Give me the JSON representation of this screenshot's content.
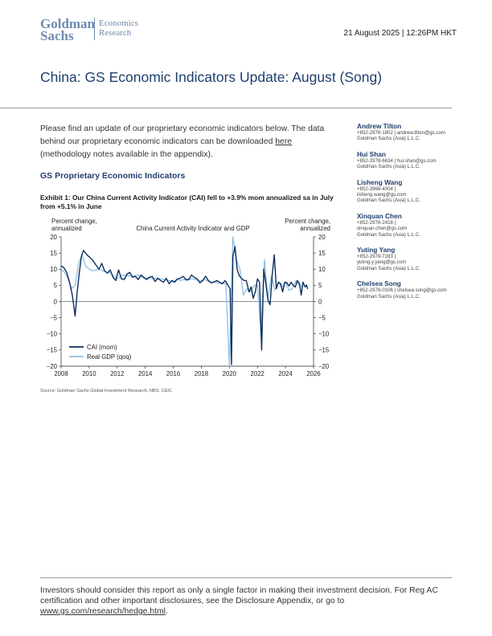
{
  "header": {
    "logo_line1": "Goldman",
    "logo_line2": "Sachs",
    "brand_line1": "Economics",
    "brand_line2": "Research",
    "date": "21 August 2025 | 12:26PM HKT"
  },
  "title": "China: GS Economic Indicators Update: August (Song)",
  "intro": {
    "text_before": "Please find an update of our proprietary economic indicators below. The data behind our proprietary economic indicators can be downloaded ",
    "link_text": "here",
    "text_after": " (methodology notes available in the appendix)."
  },
  "section_heading": "GS Proprietary Economic Indicators",
  "exhibit_title": "Exhibit 1: Our China Current Activity Indicator (CAI) fell to +3.9% mom annualized sa in July from +5.1% in June",
  "source": "Source: Goldman Sachs Global Investment Research, NBS, CEIC",
  "authors": [
    {
      "name": "Andrew Tilton",
      "contact": "+852-2978-1802 | andrew.tilton@gs.com",
      "company": "Goldman Sachs (Asia) L.L.C."
    },
    {
      "name": "Hui Shan",
      "contact": "+852-2978-6634 | hui.shan@gs.com",
      "company": "Goldman Sachs (Asia) L.L.C."
    },
    {
      "name": "Lisheng Wang",
      "contact": "+852-3966-4004 |",
      "contact2": "lisheng.wang@gs.com",
      "company": "Goldman Sachs (Asia) L.L.C."
    },
    {
      "name": "Xinquan Chen",
      "contact": "+852-2978-2418 |",
      "contact2": "xinquan.chen@gs.com",
      "company": "Goldman Sachs (Asia) L.L.C."
    },
    {
      "name": "Yuting Yang",
      "contact": "+852-2978-7283 |",
      "contact2": "yuting.y.yang@gs.com",
      "company": "Goldman Sachs (Asia) L.L.C."
    },
    {
      "name": "Chelsea Song",
      "contact": "+852-2978-0106 | chelsea.song@gs.com",
      "company": "Goldman Sachs (Asia) L.L.C."
    }
  ],
  "footer": {
    "text": "Investors should consider this report as only a single factor in making their investment decision. For Reg AC certification and other important disclosures, see the Disclosure Appendix, or go to ",
    "link_text": "www.gs.com/research/hedge.html",
    "text_after": "."
  },
  "chart_data": {
    "type": "line",
    "title": "China Current Activity Indicator and GDP",
    "ylabel_left": "Percent change, annualized",
    "ylabel_right": "Percent change, annualized",
    "xlim": [
      2008,
      2026
    ],
    "ylim": [
      -20,
      20
    ],
    "x_ticks": [
      "2008",
      "2010",
      "2012",
      "2014",
      "2016",
      "2018",
      "2020",
      "2022",
      "2024",
      "2026"
    ],
    "y_ticks_left": [
      "20",
      "15",
      "10",
      "5",
      "0",
      "−5",
      "−10",
      "−15",
      "−20"
    ],
    "y_ticks_right": [
      "20",
      "15",
      "10",
      "5",
      "0",
      "−5",
      "−10",
      "−15",
      "−20"
    ],
    "legend_position": "bottom-left",
    "grid": false,
    "series": [
      {
        "name": "CAI (mom)",
        "color": "#0d2f5c",
        "points": [
          [
            2008.0,
            11.0
          ],
          [
            2008.2,
            10.5
          ],
          [
            2008.4,
            9.0
          ],
          [
            2008.6,
            6.0
          ],
          [
            2008.8,
            2.0
          ],
          [
            2009.0,
            -4.5
          ],
          [
            2009.15,
            3.0
          ],
          [
            2009.3,
            9.0
          ],
          [
            2009.45,
            14.0
          ],
          [
            2009.6,
            15.8
          ],
          [
            2009.75,
            15.0
          ],
          [
            2009.9,
            14.2
          ],
          [
            2010.1,
            13.5
          ],
          [
            2010.3,
            12.5
          ],
          [
            2010.5,
            11.2
          ],
          [
            2010.7,
            10.0
          ],
          [
            2010.9,
            11.8
          ],
          [
            2011.1,
            9.5
          ],
          [
            2011.3,
            8.8
          ],
          [
            2011.5,
            9.8
          ],
          [
            2011.7,
            7.5
          ],
          [
            2011.9,
            6.5
          ],
          [
            2012.1,
            9.8
          ],
          [
            2012.3,
            7.0
          ],
          [
            2012.5,
            6.8
          ],
          [
            2012.7,
            8.5
          ],
          [
            2012.9,
            9.0
          ],
          [
            2013.1,
            7.5
          ],
          [
            2013.3,
            7.8
          ],
          [
            2013.5,
            6.8
          ],
          [
            2013.7,
            8.2
          ],
          [
            2013.9,
            7.5
          ],
          [
            2014.1,
            6.8
          ],
          [
            2014.3,
            7.5
          ],
          [
            2014.5,
            7.8
          ],
          [
            2014.7,
            6.2
          ],
          [
            2014.9,
            7.2
          ],
          [
            2015.1,
            6.5
          ],
          [
            2015.3,
            6.0
          ],
          [
            2015.5,
            7.2
          ],
          [
            2015.7,
            5.5
          ],
          [
            2015.9,
            6.5
          ],
          [
            2016.1,
            6.0
          ],
          [
            2016.3,
            7.0
          ],
          [
            2016.5,
            7.2
          ],
          [
            2016.7,
            7.8
          ],
          [
            2016.9,
            6.8
          ],
          [
            2017.1,
            6.8
          ],
          [
            2017.3,
            8.2
          ],
          [
            2017.5,
            7.5
          ],
          [
            2017.7,
            7.0
          ],
          [
            2017.9,
            5.8
          ],
          [
            2018.1,
            6.5
          ],
          [
            2018.3,
            7.8
          ],
          [
            2018.5,
            6.5
          ],
          [
            2018.7,
            5.8
          ],
          [
            2018.9,
            6.0
          ],
          [
            2019.1,
            6.5
          ],
          [
            2019.3,
            6.0
          ],
          [
            2019.5,
            5.5
          ],
          [
            2019.7,
            6.5
          ],
          [
            2019.9,
            5.0
          ],
          [
            2020.05,
            4.0
          ],
          [
            2020.15,
            -19.5
          ],
          [
            2020.25,
            14.0
          ],
          [
            2020.4,
            17.0
          ],
          [
            2020.55,
            10.0
          ],
          [
            2020.7,
            8.0
          ],
          [
            2020.9,
            7.0
          ],
          [
            2021.05,
            6.5
          ],
          [
            2021.2,
            6.5
          ],
          [
            2021.4,
            3.0
          ],
          [
            2021.55,
            4.5
          ],
          [
            2021.7,
            1.0
          ],
          [
            2021.85,
            3.0
          ],
          [
            2022.0,
            7.0
          ],
          [
            2022.15,
            6.0
          ],
          [
            2022.3,
            -15.0
          ],
          [
            2022.45,
            10.0
          ],
          [
            2022.6,
            5.5
          ],
          [
            2022.75,
            0.5
          ],
          [
            2022.9,
            -1.0
          ],
          [
            2023.05,
            8.0
          ],
          [
            2023.2,
            14.5
          ],
          [
            2023.35,
            4.0
          ],
          [
            2023.5,
            6.0
          ],
          [
            2023.65,
            5.5
          ],
          [
            2023.8,
            3.0
          ],
          [
            2023.95,
            6.0
          ],
          [
            2024.1,
            5.8
          ],
          [
            2024.25,
            4.8
          ],
          [
            2024.4,
            6.0
          ],
          [
            2024.55,
            5.0
          ],
          [
            2024.7,
            4.5
          ],
          [
            2024.85,
            6.5
          ],
          [
            2025.0,
            5.5
          ],
          [
            2025.12,
            2.0
          ],
          [
            2025.25,
            6.0
          ],
          [
            2025.4,
            4.5
          ],
          [
            2025.5,
            5.1
          ],
          [
            2025.58,
            3.9
          ]
        ]
      },
      {
        "name": "Real GDP (qoq)",
        "color": "#8cc1e6",
        "points": [
          [
            2008.0,
            10.0
          ],
          [
            2008.25,
            9.0
          ],
          [
            2008.5,
            7.0
          ],
          [
            2008.75,
            4.0
          ],
          [
            2009.0,
            5.0
          ],
          [
            2009.25,
            12.0
          ],
          [
            2009.5,
            14.5
          ],
          [
            2009.75,
            11.0
          ],
          [
            2010.0,
            10.0
          ],
          [
            2010.25,
            9.5
          ],
          [
            2010.5,
            9.8
          ],
          [
            2010.75,
            10.0
          ],
          [
            2011.0,
            9.5
          ],
          [
            2011.25,
            9.0
          ],
          [
            2011.5,
            9.0
          ],
          [
            2011.75,
            8.0
          ],
          [
            2012.0,
            7.0
          ],
          [
            2012.25,
            8.0
          ],
          [
            2012.5,
            8.2
          ],
          [
            2012.75,
            8.0
          ],
          [
            2013.0,
            7.8
          ],
          [
            2013.25,
            8.0
          ],
          [
            2013.5,
            8.2
          ],
          [
            2013.75,
            7.5
          ],
          [
            2014.0,
            7.0
          ],
          [
            2014.25,
            7.5
          ],
          [
            2014.5,
            7.0
          ],
          [
            2014.75,
            7.2
          ],
          [
            2015.0,
            7.0
          ],
          [
            2015.25,
            7.0
          ],
          [
            2015.5,
            6.5
          ],
          [
            2015.75,
            6.5
          ],
          [
            2016.0,
            6.0
          ],
          [
            2016.25,
            7.0
          ],
          [
            2016.5,
            6.5
          ],
          [
            2016.75,
            6.8
          ],
          [
            2017.0,
            6.5
          ],
          [
            2017.25,
            7.0
          ],
          [
            2017.5,
            7.0
          ],
          [
            2017.75,
            6.5
          ],
          [
            2018.0,
            6.5
          ],
          [
            2018.25,
            6.8
          ],
          [
            2018.5,
            6.2
          ],
          [
            2018.75,
            6.0
          ],
          [
            2019.0,
            6.2
          ],
          [
            2019.25,
            5.5
          ],
          [
            2019.5,
            5.8
          ],
          [
            2019.75,
            5.5
          ],
          [
            2020.0,
            -20.0
          ],
          [
            2020.25,
            20.0
          ],
          [
            2020.5,
            13.0
          ],
          [
            2020.75,
            10.0
          ],
          [
            2021.0,
            2.0
          ],
          [
            2021.25,
            4.0
          ],
          [
            2021.5,
            3.0
          ],
          [
            2021.75,
            5.0
          ],
          [
            2022.0,
            5.0
          ],
          [
            2022.25,
            -10.0
          ],
          [
            2022.5,
            13.0
          ],
          [
            2022.75,
            1.0
          ],
          [
            2023.0,
            8.0
          ],
          [
            2023.25,
            3.5
          ],
          [
            2023.5,
            6.0
          ],
          [
            2023.75,
            4.5
          ],
          [
            2024.0,
            6.0
          ],
          [
            2024.25,
            3.5
          ],
          [
            2024.5,
            4.0
          ],
          [
            2024.75,
            6.5
          ],
          [
            2025.0,
            5.0
          ],
          [
            2025.25,
            4.5
          ]
        ]
      }
    ]
  }
}
